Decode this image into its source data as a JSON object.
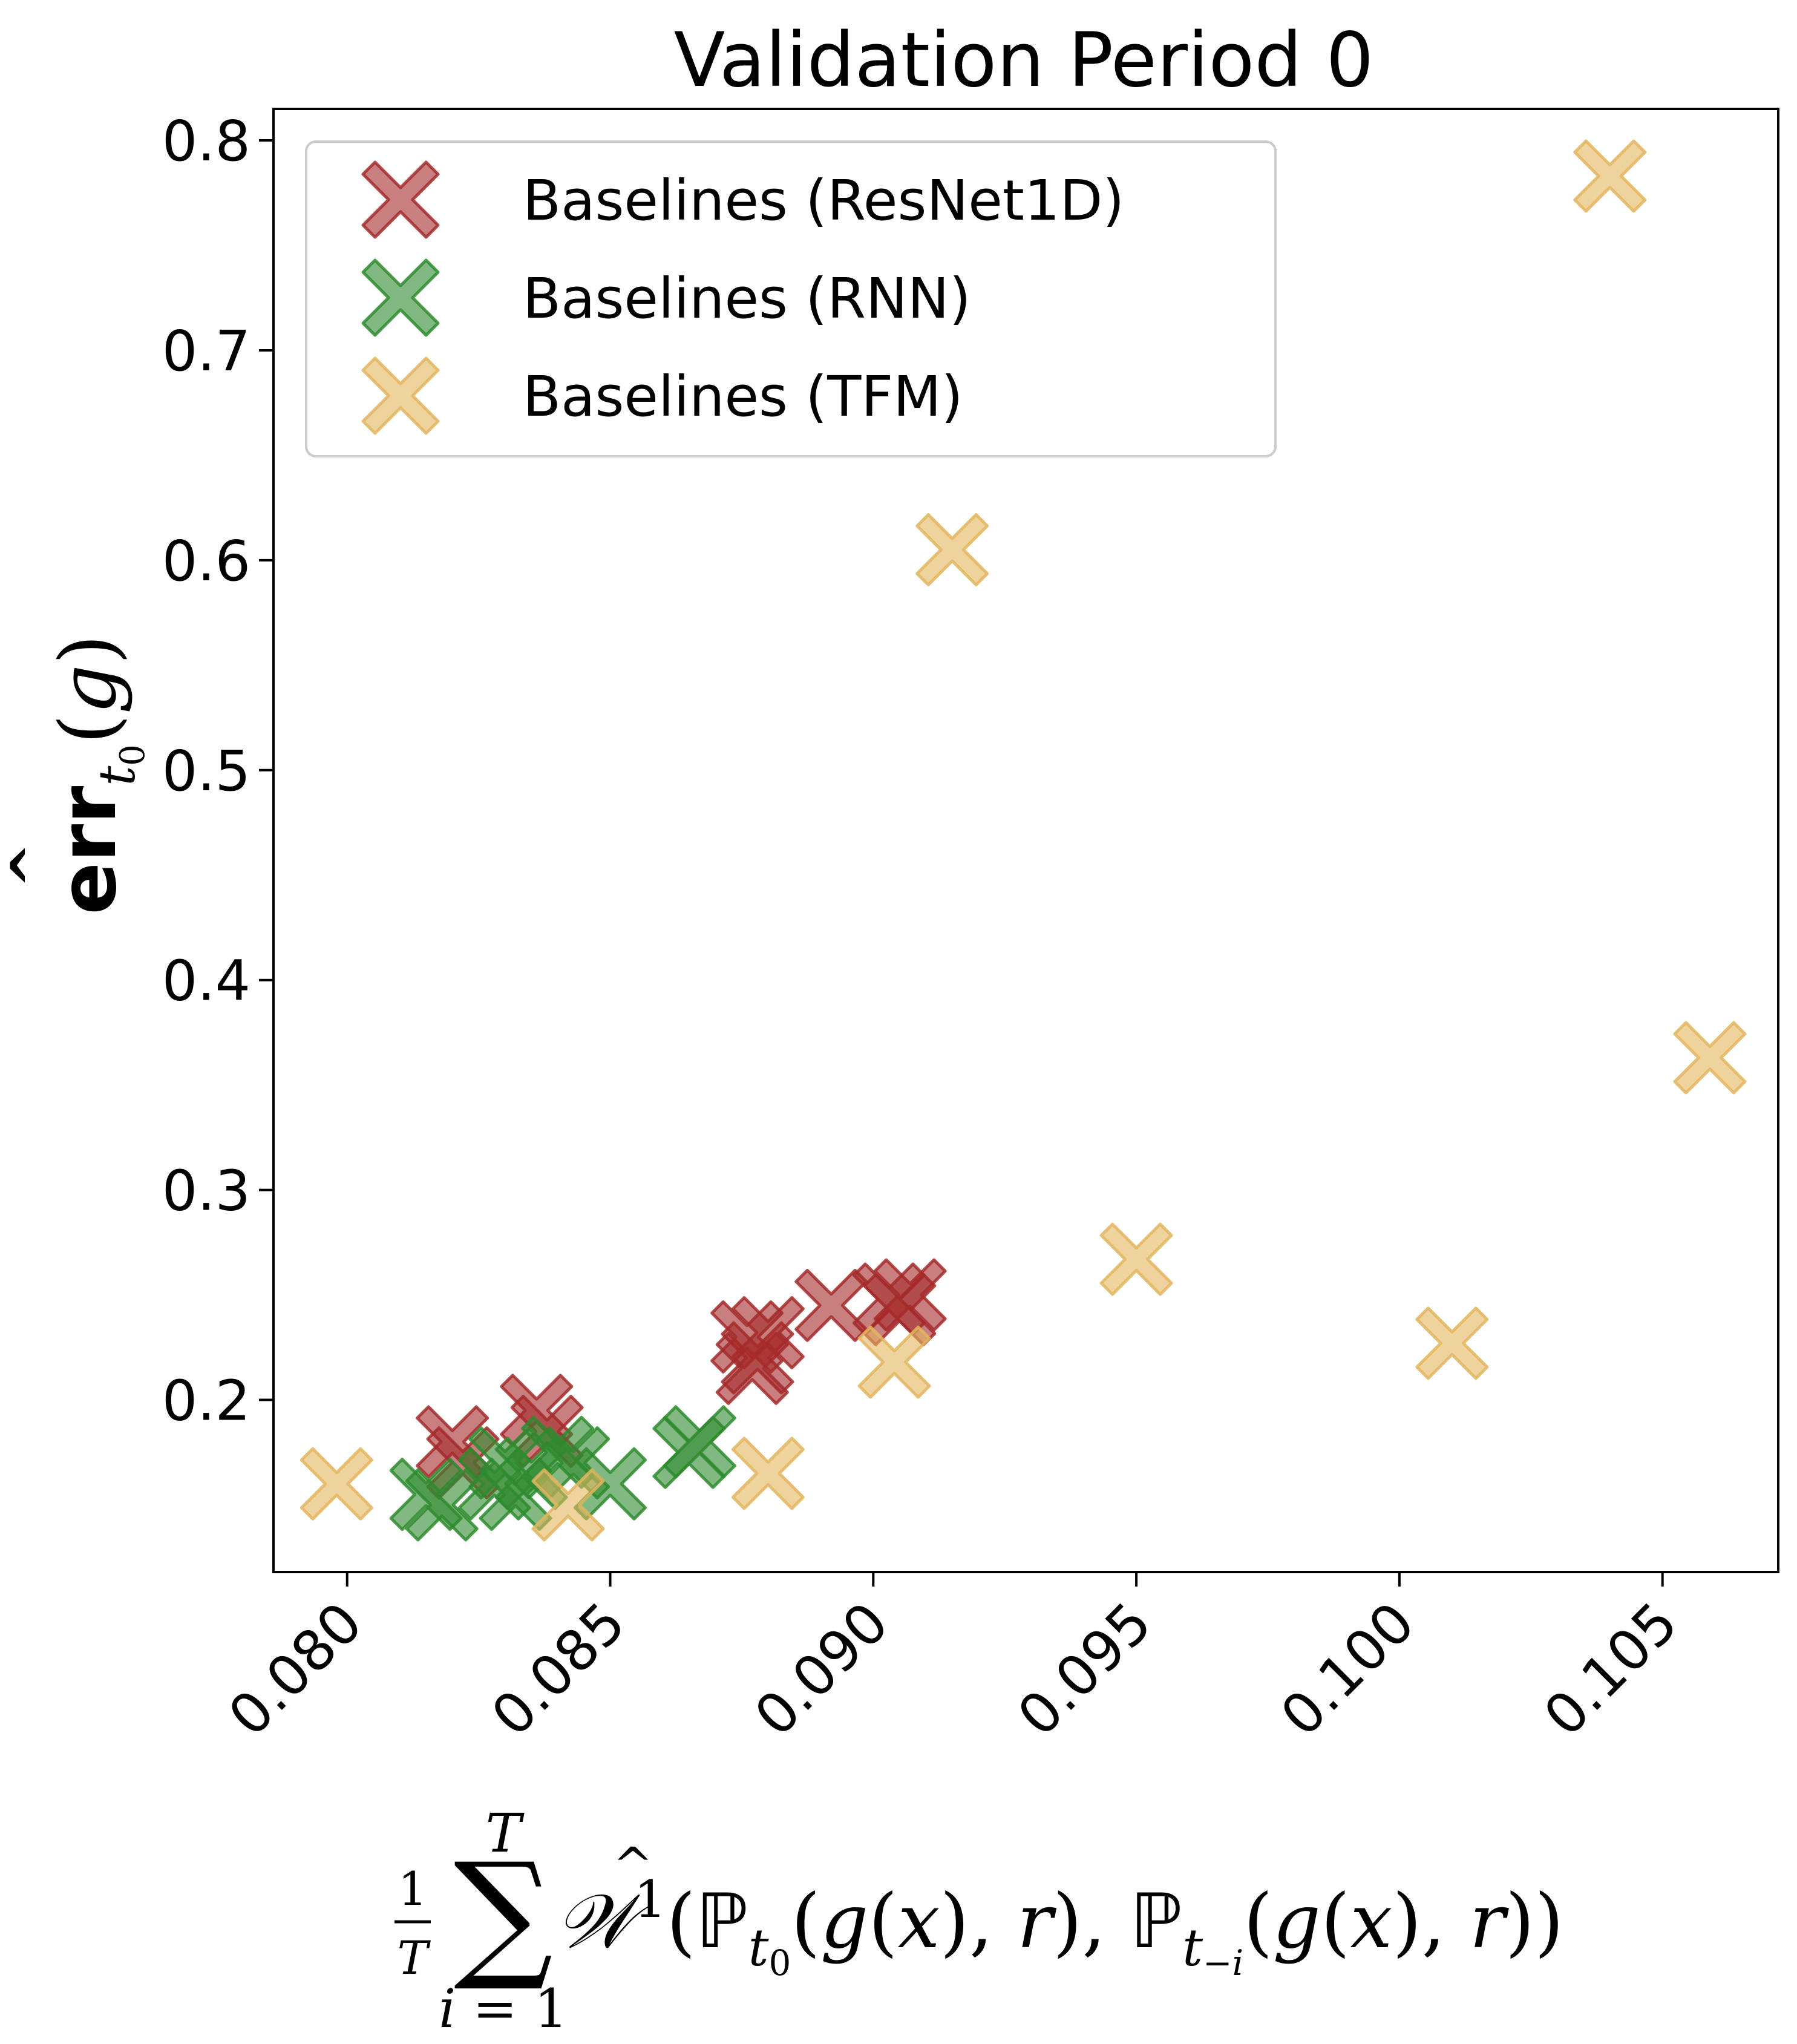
{
  "chart_data": {
    "type": "scatter",
    "title": "Validation Period 0",
    "xlabel": "",
    "ylabel": "",
    "xlim": [
      0.0786,
      0.1072
    ],
    "ylim": [
      0.118,
      0.815
    ],
    "x_ticks": [
      0.08,
      0.085,
      0.09,
      0.095,
      0.1,
      0.105
    ],
    "x_tick_labels": [
      "0.080",
      "0.085",
      "0.090",
      "0.095",
      "0.100",
      "0.105"
    ],
    "y_ticks": [
      0.2,
      0.3,
      0.4,
      0.5,
      0.6,
      0.7,
      0.8
    ],
    "y_tick_labels": [
      "0.2",
      "0.3",
      "0.4",
      "0.5",
      "0.6",
      "0.7",
      "0.8"
    ],
    "grid": false,
    "legend_position": "top-left",
    "marker": "X",
    "series": [
      {
        "name": "Baselines (ResNet1D)",
        "color": "#a52a2a",
        "points": [
          {
            "x": 0.082,
            "y": 0.18
          },
          {
            "x": 0.0822,
            "y": 0.17
          },
          {
            "x": 0.0836,
            "y": 0.195
          },
          {
            "x": 0.0838,
            "y": 0.185
          },
          {
            "x": 0.0876,
            "y": 0.23
          },
          {
            "x": 0.0878,
            "y": 0.22
          },
          {
            "x": 0.088,
            "y": 0.232
          },
          {
            "x": 0.0877,
            "y": 0.215
          },
          {
            "x": 0.0892,
            "y": 0.245
          },
          {
            "x": 0.0903,
            "y": 0.248
          },
          {
            "x": 0.0907,
            "y": 0.25
          },
          {
            "x": 0.0905,
            "y": 0.243
          }
        ]
      },
      {
        "name": "Baselines (RNN)",
        "color": "#2e8b2e",
        "points": [
          {
            "x": 0.0815,
            "y": 0.155
          },
          {
            "x": 0.0818,
            "y": 0.15
          },
          {
            "x": 0.0828,
            "y": 0.16
          },
          {
            "x": 0.083,
            "y": 0.17
          },
          {
            "x": 0.0832,
            "y": 0.155
          },
          {
            "x": 0.0835,
            "y": 0.165
          },
          {
            "x": 0.084,
            "y": 0.175
          },
          {
            "x": 0.0843,
            "y": 0.17
          },
          {
            "x": 0.085,
            "y": 0.16
          },
          {
            "x": 0.0865,
            "y": 0.175
          },
          {
            "x": 0.0867,
            "y": 0.18
          }
        ]
      },
      {
        "name": "Baselines (TFM)",
        "color": "#e3b55f",
        "points": [
          {
            "x": 0.0798,
            "y": 0.16
          },
          {
            "x": 0.0842,
            "y": 0.15
          },
          {
            "x": 0.088,
            "y": 0.165
          },
          {
            "x": 0.0904,
            "y": 0.218
          },
          {
            "x": 0.0915,
            "y": 0.605
          },
          {
            "x": 0.095,
            "y": 0.267
          },
          {
            "x": 0.101,
            "y": 0.227
          },
          {
            "x": 0.104,
            "y": 0.783
          },
          {
            "x": 0.1059,
            "y": 0.363
          }
        ]
      }
    ]
  }
}
